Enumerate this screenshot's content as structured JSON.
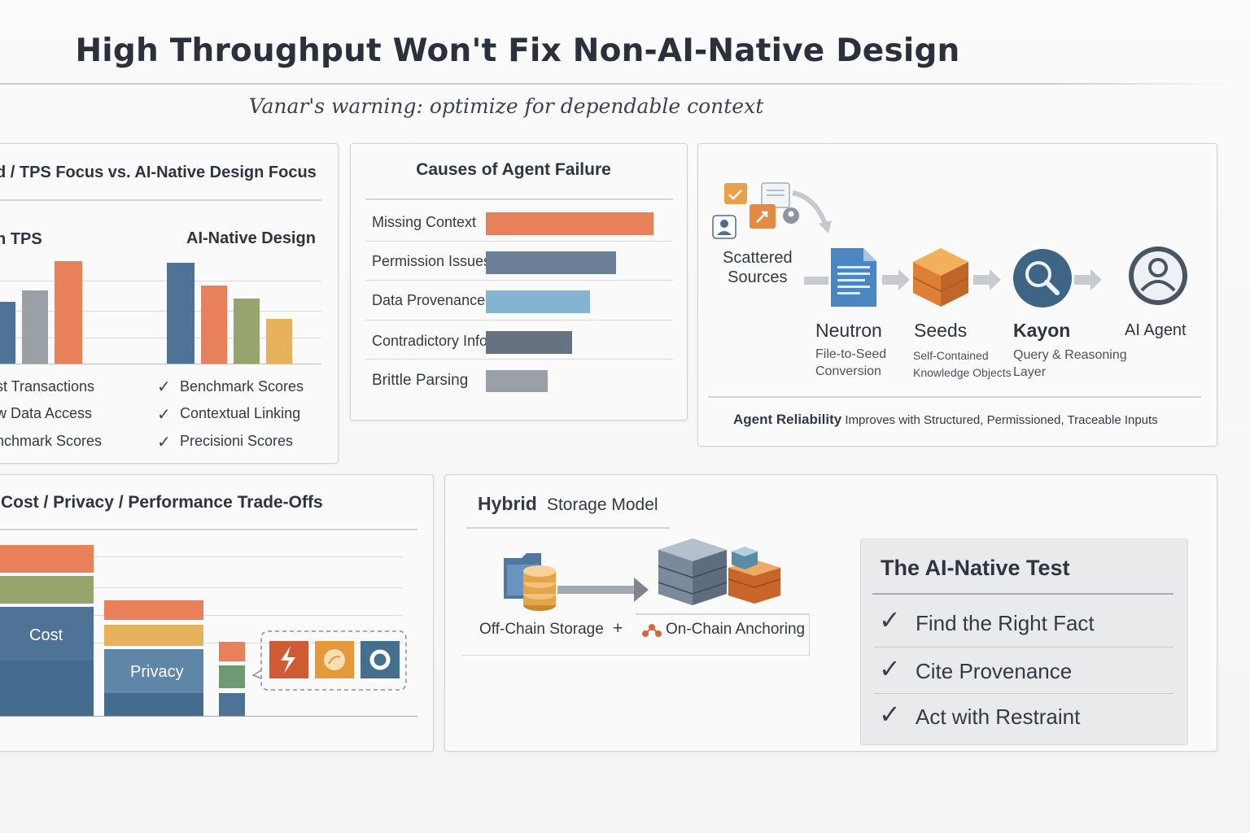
{
  "title": "High Throughput Won't Fix Non-AI-Native Design",
  "subtitle": "Vanar's warning: optimize for dependable context",
  "panel_tps": {
    "header": "d / TPS Focus vs. AI-Native Design Focus",
    "left_label": "h TPS",
    "right_label": "AI-Native Design",
    "left_items": [
      "st Transactions",
      "w Data Access",
      "nchmark Scores"
    ],
    "right_items": [
      "Benchmark Scores",
      "Contextual Linking",
      "Precisioni Scores"
    ],
    "check": "✓"
  },
  "panel_failure": {
    "header": "Causes of Agent Failure",
    "rows": [
      {
        "label": "Missing Context",
        "color": "#e8805a"
      },
      {
        "label": "Permission Issues",
        "color": "#6b7f99"
      },
      {
        "label": "Data Provenance",
        "color": "#84b4d2"
      },
      {
        "label": "Contradictory Info",
        "color": "#66727f"
      },
      {
        "label": "Brittle Parsing",
        "color": "#9aa0a8"
      }
    ]
  },
  "panel_pipeline": {
    "sources_label": "Scattered\nSources",
    "stages": [
      {
        "name": "Neutron",
        "desc": "File-to-Seed\nConversion",
        "icon": "document-icon"
      },
      {
        "name": "Seeds",
        "desc": "Self-Contained\nKnowledge Objects",
        "icon": "cube-icon"
      },
      {
        "name": "Kayon",
        "desc": "Query & Reasoning\nLayer",
        "icon": "magnifier-icon"
      },
      {
        "name": "AI Agent",
        "desc": "",
        "icon": "agent-icon"
      }
    ],
    "footer_bold": "Agent Reliability",
    "footer_rest": " Improves with Structured, Permissioned, Traceable Inputs"
  },
  "panel_tradeoffs": {
    "header": "Cost / Privacy / Performance Trade-Offs",
    "cost_label": "Cost",
    "privacy_label": "Privacy"
  },
  "panel_storage": {
    "header_bold": "Hybrid",
    "header_rest": "Storage Model",
    "offchain_label": "Off-Chain Storage",
    "plus": "+",
    "onchain_label": "On-Chain Anchoring"
  },
  "ai_native_test": {
    "header": "The AI-Native Test",
    "items": [
      "Find the Right Fact",
      "Cite Provenance",
      "Act with Restraint"
    ],
    "check": "✓"
  },
  "colors": {
    "orange": "#e8805a",
    "steel": "#4e7396",
    "gray": "#9aa0a6",
    "olive": "#96a56e",
    "gold": "#e6b35c",
    "green": "#6c9a72"
  }
}
